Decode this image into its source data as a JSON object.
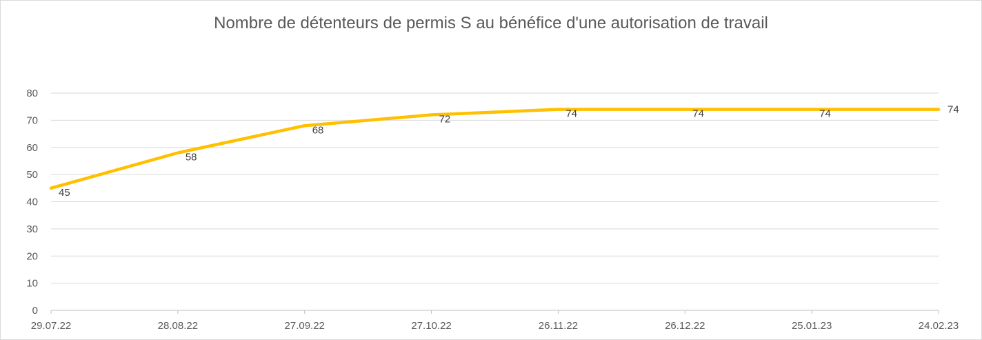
{
  "chart_data": {
    "type": "line",
    "title": "Nombre de détenteurs de permis S au bénéfice d'une autorisation de travail",
    "xlabel": "",
    "ylabel": "",
    "categories": [
      "29.07.22",
      "28.08.22",
      "27.09.22",
      "27.10.22",
      "26.11.22",
      "26.12.22",
      "25.01.23",
      "24.02.23"
    ],
    "x_dates": [
      "2022-07-29",
      "2022-08-28",
      "2022-09-27",
      "2022-10-27",
      "2022-11-26",
      "2022-12-26",
      "2023-01-25",
      "2023-02-24"
    ],
    "series": [
      {
        "x": [
          "2022-07-29",
          "2022-08-28",
          "2022-09-27",
          "2022-10-27",
          "2022-11-26",
          "2022-12-26",
          "2023-01-25",
          "2023-02-24"
        ],
        "values": [
          45,
          58,
          68,
          72,
          74,
          74,
          74,
          74
        ],
        "color": "#FFC000"
      }
    ],
    "ylim": [
      0,
      80
    ],
    "yticks": [
      0,
      10,
      20,
      30,
      40,
      50,
      60,
      70,
      80
    ],
    "grid": true,
    "legend": "none"
  }
}
